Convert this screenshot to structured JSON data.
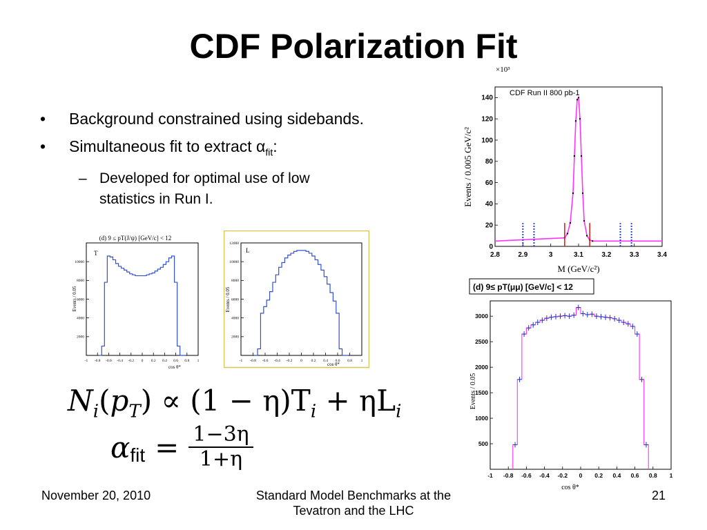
{
  "slide": {
    "title": "CDF Polarization Fit",
    "bullets": [
      {
        "text": "Background constrained using sidebands."
      },
      {
        "pre": "Simultaneous fit to extract α",
        "sub": "fit",
        "post": ":"
      }
    ],
    "subbullet": "Developed for optimal use of low statistics in Run I.",
    "formula1": {
      "lhs": "N",
      "lhs_sub": "i",
      "arg": "p",
      "arg_sub": "T",
      "rel": "∝",
      "rhs": "(1 − η)T",
      "rhs_sub": "i",
      "plus": "+ ηL",
      "plus_sub": "i"
    },
    "formula2": {
      "lhs": "α",
      "lhs_sub": "fit",
      "eq": "=",
      "num": "1−3η",
      "den": "1+η"
    },
    "footer": {
      "date": "November 20, 2010",
      "center": "Standard Model Benchmarks at the Tevatron and the LHC",
      "page": "21"
    }
  },
  "chart_data": [
    {
      "type": "line",
      "title": "(d) 9 ≤ pT(J/ψ) [GeV/c] < 12",
      "label": "T",
      "xlabel": "cos θ*",
      "ylabel": "Events / 0.05",
      "xlim": [
        -1,
        1
      ],
      "ylim": [
        0,
        12000
      ],
      "xticks": [
        "-1",
        "-0.8",
        "-0.6",
        "-0.4",
        "-0.2",
        "0",
        "0.2",
        "0.4",
        "0.6",
        "0.8",
        "1"
      ],
      "yticks": [
        "2000",
        "4000",
        "6000",
        "8000",
        "10000"
      ],
      "x": [
        -0.75,
        -0.7,
        -0.65,
        -0.6,
        -0.55,
        -0.5,
        -0.45,
        -0.4,
        -0.35,
        -0.3,
        -0.25,
        -0.2,
        -0.15,
        -0.1,
        -0.05,
        0,
        0.05,
        0.1,
        0.15,
        0.2,
        0.25,
        0.3,
        0.35,
        0.4,
        0.45,
        0.5,
        0.55,
        0.6,
        0.65,
        0.7,
        0.75
      ],
      "values": [
        0,
        1000,
        7800,
        10600,
        10500,
        10200,
        9800,
        9500,
        9300,
        9100,
        8900,
        8700,
        8600,
        8500,
        8500,
        8500,
        8500,
        8600,
        8700,
        8800,
        9000,
        9200,
        9400,
        9700,
        10000,
        10400,
        10600,
        7800,
        1000,
        0,
        0
      ]
    },
    {
      "type": "line",
      "label": "L",
      "xlabel": "cos θ*",
      "ylabel": "Events / 0.05",
      "xlim": [
        -1,
        1
      ],
      "ylim": [
        0,
        12000
      ],
      "xticks": [
        "-1",
        "-0.8",
        "-0.6",
        "-0.4",
        "-0.2",
        "0",
        "0.2",
        "0.4",
        "0.6",
        "0.8",
        "1"
      ],
      "yticks": [
        "2000",
        "4000",
        "6000",
        "8000",
        "10000",
        "12000"
      ],
      "x": [
        -0.75,
        -0.7,
        -0.65,
        -0.6,
        -0.55,
        -0.5,
        -0.45,
        -0.4,
        -0.35,
        -0.3,
        -0.25,
        -0.2,
        -0.15,
        -0.1,
        -0.05,
        0,
        0.05,
        0.1,
        0.15,
        0.2,
        0.25,
        0.3,
        0.35,
        0.4,
        0.45,
        0.5,
        0.55,
        0.6,
        0.65,
        0.7,
        0.75
      ],
      "values": [
        0,
        700,
        4500,
        5200,
        5900,
        6800,
        7800,
        8600,
        9400,
        9900,
        10400,
        10700,
        10900,
        11100,
        11200,
        11200,
        11200,
        11100,
        10900,
        10600,
        10200,
        9700,
        9100,
        8400,
        7600,
        6700,
        5800,
        4500,
        700,
        0,
        0
      ]
    },
    {
      "type": "scatter",
      "label": "CDF Run II 800 pb-1",
      "xlabel": "M (GeV/c²)",
      "ylabel": "Events / 0.005 GeV/c²",
      "yunit": "×10³",
      "xlim": [
        2.8,
        3.4
      ],
      "ylim": [
        0,
        150
      ],
      "xticks": [
        "2.8",
        "2.9",
        "3",
        "3.1",
        "3.2",
        "3.3",
        "3.4"
      ],
      "yticks": [
        "0",
        "20",
        "40",
        "60",
        "80",
        "100",
        "120",
        "140"
      ],
      "x": [
        3.05,
        3.06,
        3.07,
        3.08,
        3.085,
        3.09,
        3.095,
        3.1,
        3.105,
        3.11,
        3.115,
        3.12,
        3.13,
        3.14,
        3.15
      ],
      "values": [
        8,
        12,
        22,
        50,
        85,
        118,
        138,
        140,
        120,
        85,
        50,
        24,
        10,
        6,
        5
      ],
      "sideband_lines": [
        2.9,
        2.94,
        3.25,
        3.29
      ],
      "signal_lines": [
        3.05,
        3.14
      ]
    },
    {
      "type": "scatter",
      "title": "(d)  9≤ pT(μμ) [GeV/c] < 12",
      "xlabel": "cos θ*",
      "ylabel": "Events / 0.05",
      "xlim": [
        -1,
        1
      ],
      "ylim": [
        0,
        3300
      ],
      "xticks": [
        "-1",
        "-0.8",
        "-0.6",
        "-0.4",
        "-0.2",
        "0",
        "0.2",
        "0.4",
        "0.6",
        "0.8",
        "1"
      ],
      "yticks": [
        "500",
        "1000",
        "1500",
        "2000",
        "2500",
        "3000"
      ],
      "x": [
        -0.725,
        -0.675,
        -0.625,
        -0.575,
        -0.525,
        -0.475,
        -0.425,
        -0.375,
        -0.325,
        -0.275,
        -0.225,
        -0.175,
        -0.125,
        -0.075,
        -0.025,
        0.025,
        0.075,
        0.125,
        0.175,
        0.225,
        0.275,
        0.325,
        0.375,
        0.425,
        0.475,
        0.525,
        0.575,
        0.625,
        0.675,
        0.725
      ],
      "values": [
        480,
        1760,
        2650,
        2770,
        2830,
        2880,
        2920,
        2960,
        2980,
        2990,
        3000,
        3010,
        3000,
        3020,
        3170,
        3050,
        3030,
        3040,
        3000,
        2990,
        2980,
        2970,
        2950,
        2920,
        2880,
        2850,
        2800,
        2650,
        1760,
        480
      ]
    }
  ]
}
